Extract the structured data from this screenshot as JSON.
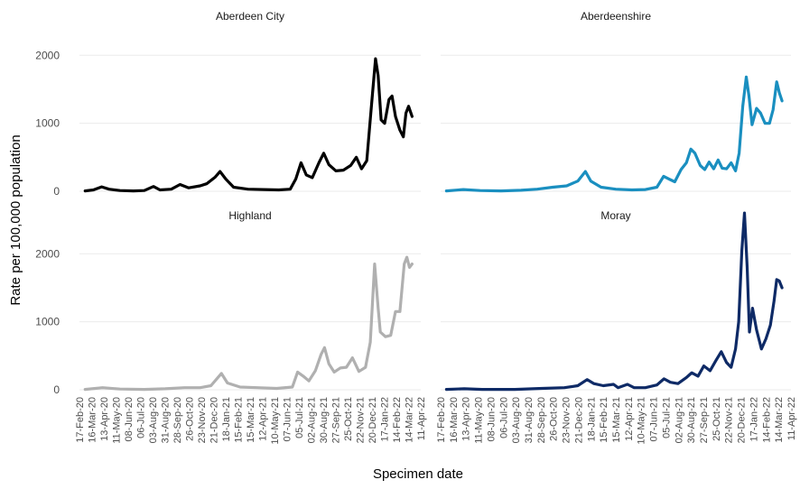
{
  "chart_data": {
    "type": "line",
    "xlabel": "Specimen date",
    "ylabel": "Rate per 100,000 population",
    "ylim": [
      0,
      2150
    ],
    "yticks": [
      0,
      1000,
      2000
    ],
    "grid": true,
    "legend": "none",
    "x_ticks": [
      "17-Feb-20",
      "16-Mar-20",
      "13-Apr-20",
      "11-May-20",
      "08-Jun-20",
      "06-Jul-20",
      "03-Aug-20",
      "31-Aug-20",
      "28-Sep-20",
      "26-Oct-20",
      "23-Nov-20",
      "21-Dec-20",
      "18-Jan-21",
      "15-Feb-21",
      "15-Mar-21",
      "12-Apr-21",
      "10-May-21",
      "07-Jun-21",
      "05-Jul-21",
      "02-Aug-21",
      "30-Aug-21",
      "27-Sep-21",
      "25-Oct-21",
      "22-Nov-21",
      "20-Dec-21",
      "17-Jan-22",
      "14-Feb-22",
      "14-Mar-22",
      "11-Apr-22"
    ],
    "x_ticks_right": [
      "17-Feb-20",
      "16-Mar-20",
      "13-Apr-20",
      "11-May-20",
      "08-Jun-20",
      "06-Jul-20",
      "03-Aug-20",
      "31-Aug-20",
      "28-Sep-20",
      "26-Oct-20",
      "23-Nov-20",
      "21-Dec-20",
      "18-Jan-21",
      "15-Feb-21",
      "15-Mar-21",
      "12-Apr-21",
      "10-May-21",
      "07-Jun-21",
      "05-Jul-21",
      "02-Aug-21",
      "30-Aug-21",
      "27-Sep-21",
      "25-Oct-21",
      "22-Nov-21",
      "20-Dec-21",
      "17-Jan-22",
      "14-Feb-22",
      "14-Mar-22",
      "11-Apr-22"
    ],
    "x_ticks_left_bottom": [
      "17-Feb-20",
      "16-Mar-20",
      "13-Apr-20",
      "11-May-20",
      "08-Jun-20",
      "06-Jul-20",
      "03-Aug-20",
      "31-Aug-20",
      "28-Sep-20",
      "26-Oct-20",
      "23-Nov-20",
      "21-Dec-20",
      "18-Jan-21",
      "15-Feb-21",
      "15-Mar-21",
      "12-Apr-21",
      "10-May-21",
      "07-Jun-21",
      "05-Jul-21",
      "02-Aug-21",
      "30-Aug-21",
      "27-Sep-21",
      "25-Oct-21",
      "22-Nov-21",
      "20-Dec-21",
      "17-Jan-22",
      "14-Feb-22",
      "14-Mar-22",
      "11-Apr-22"
    ],
    "panels": [
      {
        "name": "Aberdeen City",
        "color": "#000000",
        "series": [
          {
            "x": "2020-03-01",
            "y": 5
          },
          {
            "x": "2020-03-20",
            "y": 20
          },
          {
            "x": "2020-04-08",
            "y": 65
          },
          {
            "x": "2020-04-25",
            "y": 30
          },
          {
            "x": "2020-05-20",
            "y": 10
          },
          {
            "x": "2020-06-20",
            "y": 5
          },
          {
            "x": "2020-07-15",
            "y": 10
          },
          {
            "x": "2020-08-05",
            "y": 70
          },
          {
            "x": "2020-08-20",
            "y": 20
          },
          {
            "x": "2020-09-15",
            "y": 30
          },
          {
            "x": "2020-10-05",
            "y": 100
          },
          {
            "x": "2020-10-25",
            "y": 50
          },
          {
            "x": "2020-11-20",
            "y": 80
          },
          {
            "x": "2020-12-05",
            "y": 110
          },
          {
            "x": "2020-12-25",
            "y": 210
          },
          {
            "x": "2021-01-05",
            "y": 290
          },
          {
            "x": "2021-01-18",
            "y": 180
          },
          {
            "x": "2021-02-05",
            "y": 60
          },
          {
            "x": "2021-03-10",
            "y": 30
          },
          {
            "x": "2021-04-15",
            "y": 25
          },
          {
            "x": "2021-05-20",
            "y": 20
          },
          {
            "x": "2021-06-15",
            "y": 30
          },
          {
            "x": "2021-06-28",
            "y": 180
          },
          {
            "x": "2021-07-10",
            "y": 420
          },
          {
            "x": "2021-07-22",
            "y": 240
          },
          {
            "x": "2021-08-05",
            "y": 200
          },
          {
            "x": "2021-08-20",
            "y": 420
          },
          {
            "x": "2021-08-31",
            "y": 560
          },
          {
            "x": "2021-09-12",
            "y": 390
          },
          {
            "x": "2021-09-28",
            "y": 300
          },
          {
            "x": "2021-10-15",
            "y": 310
          },
          {
            "x": "2021-11-01",
            "y": 380
          },
          {
            "x": "2021-11-14",
            "y": 500
          },
          {
            "x": "2021-11-26",
            "y": 330
          },
          {
            "x": "2021-12-08",
            "y": 450
          },
          {
            "x": "2021-12-18",
            "y": 1200
          },
          {
            "x": "2021-12-28",
            "y": 1950
          },
          {
            "x": "2022-01-03",
            "y": 1700
          },
          {
            "x": "2022-01-10",
            "y": 1050
          },
          {
            "x": "2022-01-18",
            "y": 1000
          },
          {
            "x": "2022-01-28",
            "y": 1350
          },
          {
            "x": "2022-02-04",
            "y": 1400
          },
          {
            "x": "2022-02-12",
            "y": 1100
          },
          {
            "x": "2022-02-22",
            "y": 900
          },
          {
            "x": "2022-03-02",
            "y": 800
          },
          {
            "x": "2022-03-08",
            "y": 1150
          },
          {
            "x": "2022-03-14",
            "y": 1250
          },
          {
            "x": "2022-03-22",
            "y": 1100
          }
        ]
      },
      {
        "name": "Aberdeenshire",
        "color": "#1a8fc0",
        "series": [
          {
            "x": "2020-03-01",
            "y": 5
          },
          {
            "x": "2020-04-08",
            "y": 25
          },
          {
            "x": "2020-05-15",
            "y": 10
          },
          {
            "x": "2020-07-01",
            "y": 5
          },
          {
            "x": "2020-08-15",
            "y": 15
          },
          {
            "x": "2020-09-20",
            "y": 30
          },
          {
            "x": "2020-10-25",
            "y": 60
          },
          {
            "x": "2020-11-25",
            "y": 80
          },
          {
            "x": "2020-12-20",
            "y": 150
          },
          {
            "x": "2021-01-06",
            "y": 290
          },
          {
            "x": "2021-01-18",
            "y": 150
          },
          {
            "x": "2021-02-10",
            "y": 60
          },
          {
            "x": "2021-03-15",
            "y": 30
          },
          {
            "x": "2021-04-20",
            "y": 20
          },
          {
            "x": "2021-05-20",
            "y": 25
          },
          {
            "x": "2021-06-15",
            "y": 60
          },
          {
            "x": "2021-06-30",
            "y": 220
          },
          {
            "x": "2021-07-12",
            "y": 180
          },
          {
            "x": "2021-07-25",
            "y": 140
          },
          {
            "x": "2021-08-08",
            "y": 320
          },
          {
            "x": "2021-08-20",
            "y": 420
          },
          {
            "x": "2021-08-30",
            "y": 620
          },
          {
            "x": "2021-09-08",
            "y": 560
          },
          {
            "x": "2021-09-20",
            "y": 380
          },
          {
            "x": "2021-09-30",
            "y": 320
          },
          {
            "x": "2021-10-10",
            "y": 430
          },
          {
            "x": "2021-10-20",
            "y": 330
          },
          {
            "x": "2021-10-30",
            "y": 460
          },
          {
            "x": "2021-11-08",
            "y": 340
          },
          {
            "x": "2021-11-18",
            "y": 330
          },
          {
            "x": "2021-11-28",
            "y": 420
          },
          {
            "x": "2021-12-08",
            "y": 300
          },
          {
            "x": "2021-12-16",
            "y": 560
          },
          {
            "x": "2021-12-24",
            "y": 1250
          },
          {
            "x": "2022-01-01",
            "y": 1680
          },
          {
            "x": "2022-01-07",
            "y": 1400
          },
          {
            "x": "2022-01-14",
            "y": 980
          },
          {
            "x": "2022-01-24",
            "y": 1220
          },
          {
            "x": "2022-02-02",
            "y": 1150
          },
          {
            "x": "2022-02-12",
            "y": 1000
          },
          {
            "x": "2022-02-22",
            "y": 1000
          },
          {
            "x": "2022-03-02",
            "y": 1200
          },
          {
            "x": "2022-03-10",
            "y": 1610
          },
          {
            "x": "2022-03-16",
            "y": 1450
          },
          {
            "x": "2022-03-22",
            "y": 1330
          }
        ]
      },
      {
        "name": "Highland",
        "color": "#b0b0b0",
        "series": [
          {
            "x": "2020-03-01",
            "y": 5
          },
          {
            "x": "2020-04-10",
            "y": 30
          },
          {
            "x": "2020-05-20",
            "y": 10
          },
          {
            "x": "2020-07-15",
            "y": 5
          },
          {
            "x": "2020-09-01",
            "y": 15
          },
          {
            "x": "2020-10-15",
            "y": 30
          },
          {
            "x": "2020-11-20",
            "y": 30
          },
          {
            "x": "2020-12-15",
            "y": 60
          },
          {
            "x": "2021-01-08",
            "y": 240
          },
          {
            "x": "2021-01-22",
            "y": 100
          },
          {
            "x": "2021-02-20",
            "y": 40
          },
          {
            "x": "2021-04-01",
            "y": 30
          },
          {
            "x": "2021-05-15",
            "y": 20
          },
          {
            "x": "2021-06-20",
            "y": 40
          },
          {
            "x": "2021-07-02",
            "y": 260
          },
          {
            "x": "2021-07-15",
            "y": 200
          },
          {
            "x": "2021-07-28",
            "y": 130
          },
          {
            "x": "2021-08-12",
            "y": 280
          },
          {
            "x": "2021-08-25",
            "y": 520
          },
          {
            "x": "2021-09-02",
            "y": 620
          },
          {
            "x": "2021-09-12",
            "y": 380
          },
          {
            "x": "2021-09-24",
            "y": 260
          },
          {
            "x": "2021-10-08",
            "y": 320
          },
          {
            "x": "2021-10-22",
            "y": 330
          },
          {
            "x": "2021-11-05",
            "y": 470
          },
          {
            "x": "2021-11-20",
            "y": 270
          },
          {
            "x": "2021-12-05",
            "y": 330
          },
          {
            "x": "2021-12-16",
            "y": 700
          },
          {
            "x": "2021-12-26",
            "y": 1850
          },
          {
            "x": "2022-01-03",
            "y": 1200
          },
          {
            "x": "2022-01-08",
            "y": 850
          },
          {
            "x": "2022-01-20",
            "y": 780
          },
          {
            "x": "2022-02-01",
            "y": 800
          },
          {
            "x": "2022-02-12",
            "y": 1150
          },
          {
            "x": "2022-02-22",
            "y": 1150
          },
          {
            "x": "2022-03-04",
            "y": 1850
          },
          {
            "x": "2022-03-10",
            "y": 1950
          },
          {
            "x": "2022-03-16",
            "y": 1800
          },
          {
            "x": "2022-03-22",
            "y": 1850
          }
        ]
      },
      {
        "name": "Moray",
        "color": "#0e2a66",
        "series": [
          {
            "x": "2020-03-01",
            "y": 5
          },
          {
            "x": "2020-04-10",
            "y": 15
          },
          {
            "x": "2020-05-20",
            "y": 5
          },
          {
            "x": "2020-08-01",
            "y": 5
          },
          {
            "x": "2020-10-01",
            "y": 20
          },
          {
            "x": "2020-11-20",
            "y": 30
          },
          {
            "x": "2020-12-20",
            "y": 60
          },
          {
            "x": "2021-01-10",
            "y": 150
          },
          {
            "x": "2021-01-25",
            "y": 90
          },
          {
            "x": "2021-02-15",
            "y": 60
          },
          {
            "x": "2021-03-10",
            "y": 80
          },
          {
            "x": "2021-03-20",
            "y": 30
          },
          {
            "x": "2021-04-10",
            "y": 80
          },
          {
            "x": "2021-04-25",
            "y": 30
          },
          {
            "x": "2021-05-20",
            "y": 30
          },
          {
            "x": "2021-06-15",
            "y": 70
          },
          {
            "x": "2021-07-01",
            "y": 160
          },
          {
            "x": "2021-07-15",
            "y": 110
          },
          {
            "x": "2021-08-01",
            "y": 90
          },
          {
            "x": "2021-08-20",
            "y": 180
          },
          {
            "x": "2021-09-01",
            "y": 250
          },
          {
            "x": "2021-09-15",
            "y": 200
          },
          {
            "x": "2021-09-28",
            "y": 350
          },
          {
            "x": "2021-10-12",
            "y": 280
          },
          {
            "x": "2021-10-25",
            "y": 430
          },
          {
            "x": "2021-11-06",
            "y": 560
          },
          {
            "x": "2021-11-18",
            "y": 400
          },
          {
            "x": "2021-11-28",
            "y": 330
          },
          {
            "x": "2021-12-08",
            "y": 600
          },
          {
            "x": "2021-12-15",
            "y": 1000
          },
          {
            "x": "2021-12-22",
            "y": 2050
          },
          {
            "x": "2021-12-28",
            "y": 2600
          },
          {
            "x": "2022-01-03",
            "y": 1800
          },
          {
            "x": "2022-01-08",
            "y": 850
          },
          {
            "x": "2022-01-15",
            "y": 1200
          },
          {
            "x": "2022-01-24",
            "y": 880
          },
          {
            "x": "2022-02-04",
            "y": 600
          },
          {
            "x": "2022-02-14",
            "y": 750
          },
          {
            "x": "2022-02-24",
            "y": 950
          },
          {
            "x": "2022-03-04",
            "y": 1300
          },
          {
            "x": "2022-03-10",
            "y": 1620
          },
          {
            "x": "2022-03-16",
            "y": 1600
          },
          {
            "x": "2022-03-22",
            "y": 1500
          }
        ]
      }
    ]
  }
}
